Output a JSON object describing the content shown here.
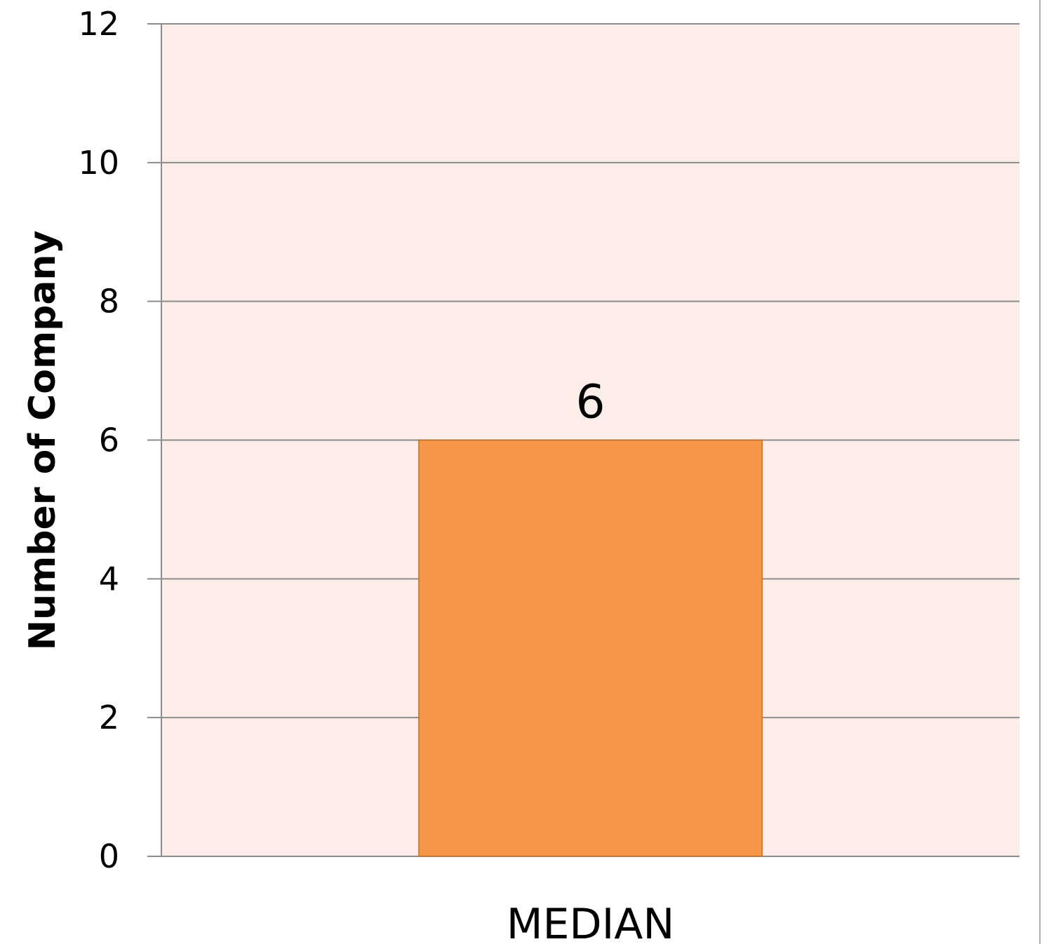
{
  "chart_data": {
    "type": "bar",
    "categories": [
      "MEDIAN"
    ],
    "values": [
      6
    ],
    "data_labels": [
      "6"
    ],
    "title": "",
    "xlabel": "",
    "ylabel": "Number of Company",
    "ylim": [
      0,
      12
    ],
    "yticks": [
      0,
      2,
      4,
      6,
      8,
      10,
      12
    ],
    "ytick_labels": [
      "0",
      "2",
      "4",
      "6",
      "8",
      "10",
      "12"
    ],
    "grid": true,
    "legend": "none",
    "colors": {
      "plot_background": "#fcede8",
      "bar_fill": "#f79646",
      "bar_stroke": "#c0712f",
      "gridline": "#8c8c8c"
    }
  }
}
